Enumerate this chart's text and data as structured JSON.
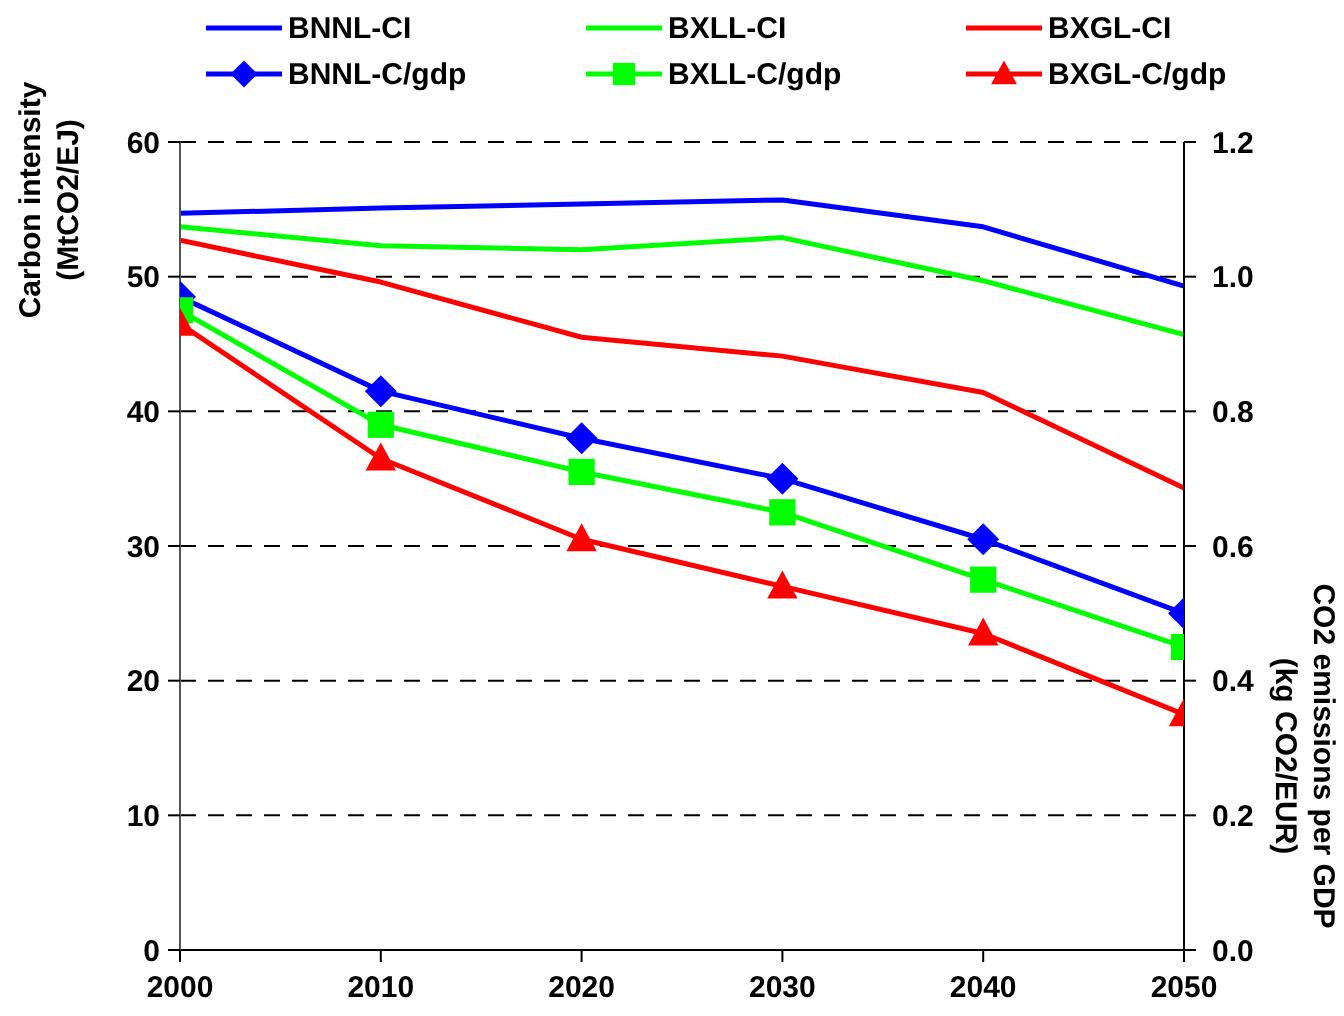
{
  "chart_data": {
    "type": "line",
    "ylabel": "Carbon intensity (MtCO2/EJ)",
    "y2label": "CO2 emissions per GDP (kg CO2/EUR)",
    "x": [
      2000,
      2010,
      2020,
      2030,
      2040,
      2050
    ],
    "xlim": [
      2000,
      2050
    ],
    "xticks": [
      2000,
      2010,
      2020,
      2030,
      2040,
      2050
    ],
    "ylim": [
      0,
      60
    ],
    "yticks": [
      0,
      10,
      20,
      30,
      40,
      50,
      60
    ],
    "y2lim": [
      0,
      1.2
    ],
    "y2ticks": [
      {
        "value": 0,
        "label": "0.0"
      },
      0.2,
      0.4,
      0.6,
      0.8,
      {
        "value": 1,
        "label": "1.0"
      },
      1.2
    ],
    "grid": "y",
    "legend": "top",
    "line_style": "solid",
    "series": [
      {
        "name": "BNNL-CI",
        "color": "#0000ff",
        "marker": "none",
        "values": [
          54.7,
          55.1,
          55.4,
          55.7,
          53.7,
          49.3
        ]
      },
      {
        "name": "BXLL-CI",
        "color": "#00ff00",
        "marker": "none",
        "values": [
          53.7,
          52.3,
          52.0,
          52.9,
          49.7,
          45.7
        ]
      },
      {
        "name": "BXGL-CI",
        "color": "#ff0000",
        "marker": "none",
        "values": [
          52.7,
          49.6,
          45.5,
          44.1,
          41.4,
          34.3
        ]
      },
      {
        "name": "BNNL-C/gdp",
        "color": "#0000ff",
        "marker": "diamond",
        "axis": "y2",
        "values": [
          0.97,
          0.83,
          0.76,
          0.7,
          0.61,
          0.5
        ]
      },
      {
        "name": "BXLL-C/gdp",
        "color": "#00ff00",
        "marker": "square",
        "axis": "y2",
        "values": [
          0.95,
          0.78,
          0.71,
          0.65,
          0.55,
          0.45
        ]
      },
      {
        "name": "BXGL-C/gdp",
        "color": "#ff0000",
        "marker": "triangle",
        "axis": "y2",
        "values": [
          0.93,
          0.73,
          0.61,
          0.54,
          0.47,
          0.35
        ]
      }
    ]
  }
}
